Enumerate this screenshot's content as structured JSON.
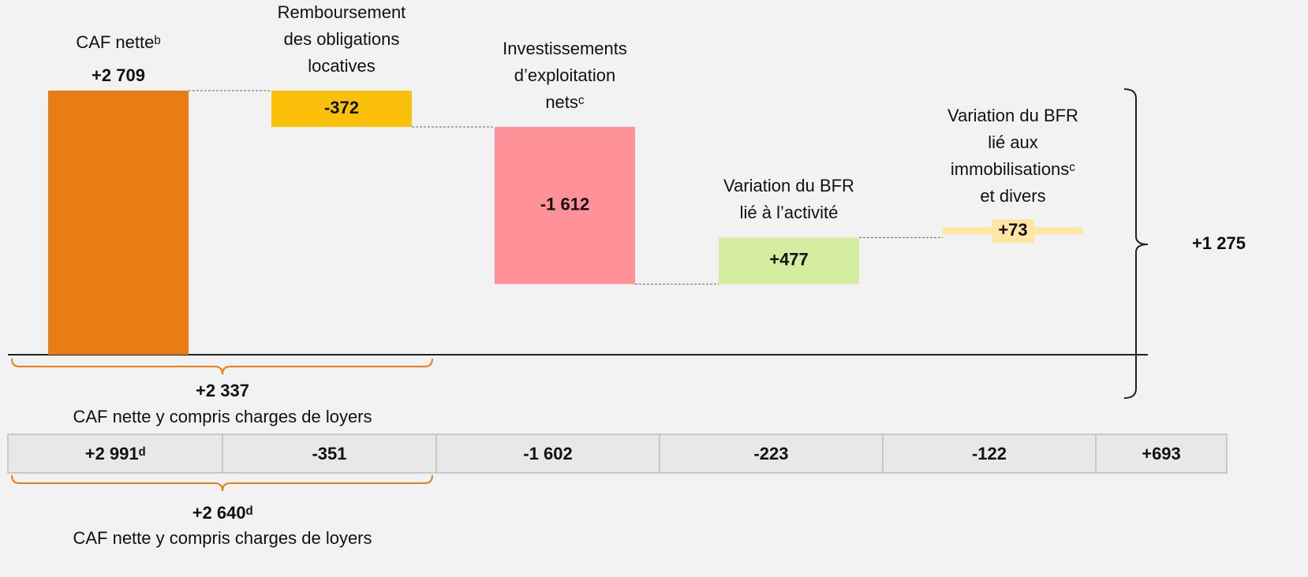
{
  "chart_data": {
    "type": "waterfall",
    "categories": [
      [
        "CAF netteᵇ"
      ],
      [
        "Remboursement",
        "des obligations",
        "locatives"
      ],
      [
        "Investissements",
        "d’exploitation",
        "netsᶜ"
      ],
      [
        "Variation du BFR",
        "lié à l’activité"
      ],
      [
        "Variation du BFR",
        "lié aux",
        "immobilisationsᶜ",
        "et divers"
      ]
    ],
    "values": [
      2709,
      -372,
      -1612,
      477,
      73
    ],
    "value_labels": [
      "+2 709",
      "-372",
      "-1 612",
      "+477",
      "+73"
    ],
    "colors": [
      "#e97c14",
      "#fbc00a",
      "#ff9198",
      "#d4eda0",
      "#fde7a3"
    ],
    "total_label": "+1 275",
    "subtotal": {
      "label": "+2 337",
      "caption": "CAF nette y compris charges de loyers"
    }
  },
  "table": {
    "cells": [
      "+2 991ᵈ",
      "-351",
      "-1 602",
      "-223",
      "-122",
      "+693"
    ],
    "subtotal": {
      "label": "+2 640ᵈ",
      "caption": "CAF nette y compris charges de loyers"
    }
  }
}
